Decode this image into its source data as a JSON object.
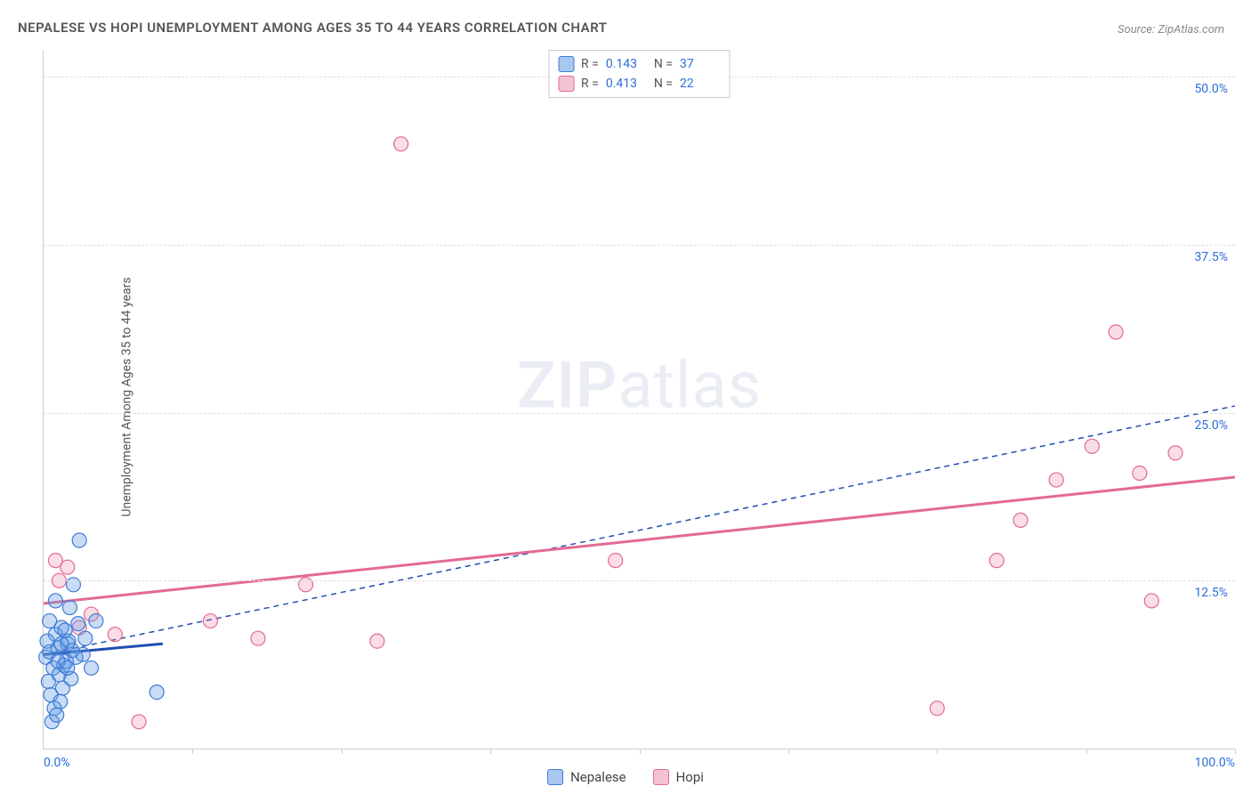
{
  "title": "NEPALESE VS HOPI UNEMPLOYMENT AMONG AGES 35 TO 44 YEARS CORRELATION CHART",
  "source": "Source: ZipAtlas.com",
  "y_axis_label": "Unemployment Among Ages 35 to 44 years",
  "watermark": {
    "bold": "ZIP",
    "rest": "atlas"
  },
  "colors": {
    "nepalese_fill": "rgba(100,155,230,0.35)",
    "nepalese_stroke": "#3d7cd6",
    "hopi_fill": "rgba(235,120,155,0.25)",
    "hopi_stroke": "#e36a94",
    "nepalese_line": "#1f4fb0",
    "hopi_line": "#e36a94",
    "tick_text": "#2c6fd8",
    "grid": "#dddddd",
    "swatch_nepalese_bg": "#a9c8f0",
    "swatch_nepalese_border": "#3d7cd6",
    "swatch_hopi_bg": "#f5c2d2",
    "swatch_hopi_border": "#e36a94"
  },
  "chart": {
    "type": "scatter",
    "xlim": [
      0,
      100
    ],
    "ylim": [
      0,
      52
    ],
    "x_ticks_minor": [
      12.5,
      25,
      37.5,
      50,
      62.5,
      75,
      87.5,
      100
    ],
    "x_tick_labels": [
      {
        "v": 0,
        "label": "0.0%"
      },
      {
        "v": 100,
        "label": "100.0%"
      }
    ],
    "y_ticks": [
      {
        "v": 12.5,
        "label": "12.5%"
      },
      {
        "v": 25,
        "label": "25.0%"
      },
      {
        "v": 37.5,
        "label": "37.5%"
      },
      {
        "v": 50,
        "label": "50.0%"
      }
    ],
    "marker_radius": 8,
    "series": {
      "nepalese": {
        "label": "Nepalese",
        "R": "0.143",
        "N": "37",
        "trend": {
          "x1": 0,
          "y1": 7.0,
          "x2": 10,
          "y2": 7.8,
          "style": "solid",
          "width": 3
        },
        "dashed_extension": {
          "x1": 0,
          "y1": 7.0,
          "x2": 100,
          "y2": 25.5
        },
        "points": [
          [
            0.2,
            6.8
          ],
          [
            0.5,
            7.2
          ],
          [
            0.8,
            6.0
          ],
          [
            1.0,
            8.5
          ],
          [
            1.2,
            7.5
          ],
          [
            1.5,
            9.0
          ],
          [
            1.7,
            6.2
          ],
          [
            2.0,
            7.8
          ],
          [
            2.2,
            10.5
          ],
          [
            0.4,
            5.0
          ],
          [
            0.6,
            4.0
          ],
          [
            0.9,
            3.0
          ],
          [
            1.3,
            5.5
          ],
          [
            1.6,
            4.5
          ],
          [
            1.8,
            8.8
          ],
          [
            2.3,
            5.2
          ],
          [
            2.5,
            12.2
          ],
          [
            3.0,
            15.5
          ],
          [
            3.3,
            7.0
          ],
          [
            3.5,
            8.2
          ],
          [
            4.0,
            6.0
          ],
          [
            4.4,
            9.5
          ],
          [
            0.7,
            2.0
          ],
          [
            1.1,
            2.5
          ],
          [
            1.4,
            3.5
          ],
          [
            1.9,
            6.5
          ],
          [
            2.1,
            8.0
          ],
          [
            2.7,
            6.8
          ],
          [
            2.9,
            9.3
          ],
          [
            1.0,
            11.0
          ],
          [
            0.3,
            8.0
          ],
          [
            0.5,
            9.5
          ],
          [
            1.2,
            6.5
          ],
          [
            1.5,
            7.8
          ],
          [
            2.0,
            6.0
          ],
          [
            9.5,
            4.2
          ],
          [
            2.4,
            7.3
          ]
        ]
      },
      "hopi": {
        "label": "Hopi",
        "R": "0.413",
        "N": "22",
        "trend": {
          "x1": 0,
          "y1": 10.8,
          "x2": 100,
          "y2": 20.2,
          "style": "solid",
          "width": 3
        },
        "points": [
          [
            1.0,
            14.0
          ],
          [
            1.3,
            12.5
          ],
          [
            2.0,
            13.5
          ],
          [
            3.0,
            9.0
          ],
          [
            4.0,
            10.0
          ],
          [
            6.0,
            8.5
          ],
          [
            8.0,
            2.0
          ],
          [
            14.0,
            9.5
          ],
          [
            18.0,
            8.2
          ],
          [
            22.0,
            12.2
          ],
          [
            28.0,
            8.0
          ],
          [
            30.0,
            45.0
          ],
          [
            48.0,
            14.0
          ],
          [
            75.0,
            3.0
          ],
          [
            80.0,
            14.0
          ],
          [
            82.0,
            17.0
          ],
          [
            85.0,
            20.0
          ],
          [
            88.0,
            22.5
          ],
          [
            90.0,
            31.0
          ],
          [
            92.0,
            20.5
          ],
          [
            93.0,
            11.0
          ],
          [
            95.0,
            22.0
          ]
        ]
      }
    }
  },
  "legend_bottom": [
    {
      "key": "nepalese",
      "label": "Nepalese"
    },
    {
      "key": "hopi",
      "label": "Hopi"
    }
  ]
}
